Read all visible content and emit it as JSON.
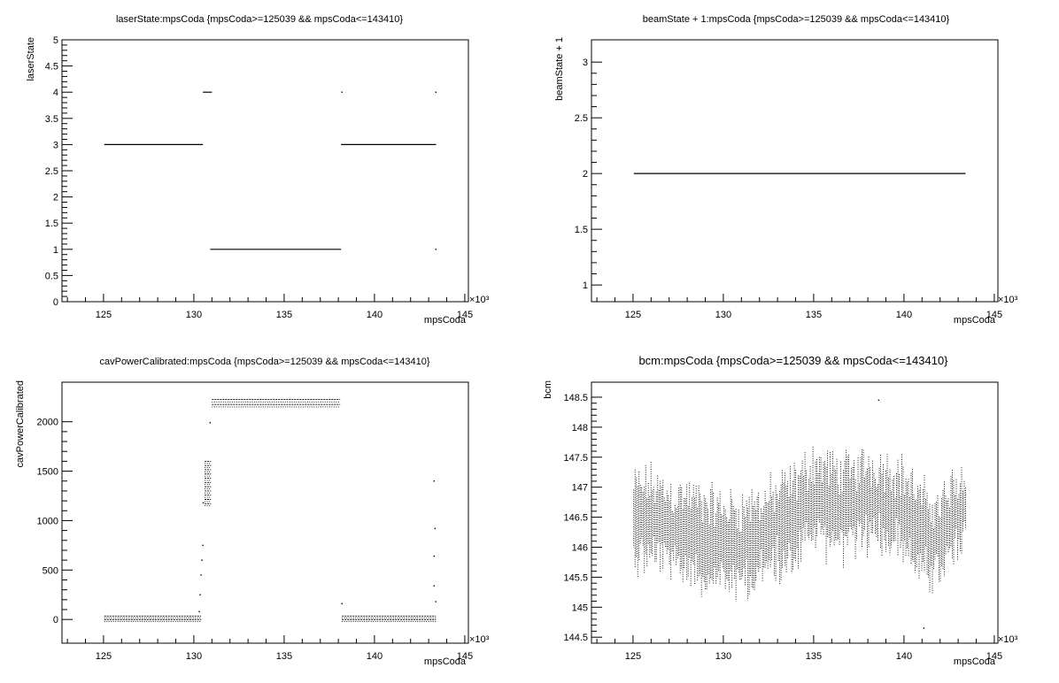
{
  "window": {
    "title": ""
  },
  "chart_data": [
    {
      "type": "scatter",
      "title": "laserState:mpsCoda {mpsCoda>=125039 && mpsCoda<=143410}",
      "xlabel": "mpsCoda",
      "ylabel": "laserState",
      "x_multiplier_label": "×10³",
      "xlim": [
        122.7,
        145.2
      ],
      "ylim": [
        0,
        5
      ],
      "xticks": [
        125,
        130,
        135,
        140,
        145
      ],
      "yticks": [
        0,
        0.5,
        1,
        1.5,
        2,
        2.5,
        3,
        3.5,
        4,
        4.5,
        5
      ],
      "ytick_labels": [
        "0",
        "0.5",
        "1",
        "1.5",
        "2",
        "2.5",
        "3",
        "3.5",
        "4",
        "4.5",
        "5"
      ],
      "grid": false,
      "segments": [
        {
          "x": [
            125.04,
            130.5
          ],
          "y": 3
        },
        {
          "x": [
            130.5,
            131.0
          ],
          "y": 4
        },
        {
          "x": [
            130.9,
            138.15
          ],
          "y": 1
        },
        {
          "x": [
            138.15,
            143.41
          ],
          "y": 3
        }
      ],
      "points": [
        [
          138.2,
          4
        ],
        [
          143.4,
          4
        ],
        [
          143.4,
          1
        ]
      ]
    },
    {
      "type": "scatter",
      "title": "beamState + 1:mpsCoda {mpsCoda>=125039 && mpsCoda<=143410}",
      "xlabel": "mpsCoda",
      "ylabel": "beamState + 1",
      "x_multiplier_label": "×10³",
      "xlim": [
        122.7,
        145.2
      ],
      "ylim": [
        0.85,
        3.2
      ],
      "xticks": [
        125,
        130,
        135,
        140,
        145
      ],
      "yticks": [
        1,
        1.5,
        2,
        2.5,
        3
      ],
      "ytick_labels": [
        "1",
        "1.5",
        "2",
        "2.5",
        "3"
      ],
      "grid": false,
      "segments": [
        {
          "x": [
            125.04,
            143.41
          ],
          "y": 2
        }
      ],
      "points": []
    },
    {
      "type": "scatter",
      "title": "cavPowerCalibrated:mpsCoda {mpsCoda>=125039 && mpsCoda<=143410}",
      "xlabel": "mpsCoda",
      "ylabel": "cavPowerCalibrated",
      "x_multiplier_label": "×10³",
      "xlim": [
        122.7,
        145.2
      ],
      "ylim": [
        -240,
        2400
      ],
      "xticks": [
        125,
        130,
        135,
        140,
        145
      ],
      "yticks": [
        0,
        500,
        1000,
        1500,
        2000
      ],
      "ytick_labels": [
        "0",
        "500",
        "1000",
        "1500",
        "2000"
      ],
      "grid": false,
      "bands": [
        {
          "x": [
            125.04,
            130.4
          ],
          "y": [
            -20,
            35
          ]
        },
        {
          "x": [
            131.0,
            138.1
          ],
          "y": [
            2150,
            2225
          ]
        },
        {
          "x": [
            138.2,
            143.4
          ],
          "y": [
            -20,
            35
          ]
        },
        {
          "x": [
            130.6,
            130.95
          ],
          "y": [
            1150,
            1600
          ]
        }
      ],
      "points": [
        [
          130.3,
          80
        ],
        [
          130.35,
          250
        ],
        [
          130.4,
          450
        ],
        [
          130.45,
          600
        ],
        [
          130.5,
          750
        ],
        [
          130.52,
          1180
        ],
        [
          130.9,
          1990
        ],
        [
          143.3,
          1400
        ],
        [
          143.35,
          920
        ],
        [
          143.3,
          640
        ],
        [
          143.3,
          340
        ],
        [
          143.4,
          180
        ],
        [
          138.2,
          160
        ]
      ]
    },
    {
      "type": "scatter",
      "title": "bcm:mpsCoda {mpsCoda>=125039 && mpsCoda<=143410}",
      "xlabel": "mpsCoda",
      "ylabel": "bcm",
      "x_multiplier_label": "×10³",
      "xlim": [
        122.7,
        145.2
      ],
      "ylim": [
        144.4,
        148.75
      ],
      "xticks": [
        125,
        130,
        135,
        140,
        145
      ],
      "yticks": [
        144.5,
        145,
        145.5,
        146,
        146.5,
        147,
        147.5,
        148,
        148.5
      ],
      "ytick_labels": [
        "144.5",
        "145",
        "145.5",
        "146",
        "146.5",
        "147",
        "147.5",
        "148",
        "148.5"
      ],
      "grid": false,
      "x_range": [
        125.04,
        143.41
      ],
      "center_profile": [
        [
          125.0,
          146.4
        ],
        [
          126.0,
          146.45
        ],
        [
          127.0,
          146.3
        ],
        [
          128.0,
          146.25
        ],
        [
          129.0,
          146.15
        ],
        [
          130.0,
          146.05
        ],
        [
          131.0,
          146.05
        ],
        [
          132.0,
          146.15
        ],
        [
          133.0,
          146.3
        ],
        [
          134.0,
          146.5
        ],
        [
          135.0,
          146.85
        ],
        [
          136.0,
          146.7
        ],
        [
          137.0,
          146.65
        ],
        [
          138.0,
          146.8
        ],
        [
          139.0,
          146.75
        ],
        [
          140.0,
          146.6
        ],
        [
          141.0,
          146.2
        ],
        [
          142.0,
          146.1
        ],
        [
          143.0,
          146.55
        ],
        [
          143.4,
          146.6
        ]
      ],
      "spread": 0.55,
      "extremes": {
        "max": 148.45,
        "min": 144.65
      }
    }
  ]
}
